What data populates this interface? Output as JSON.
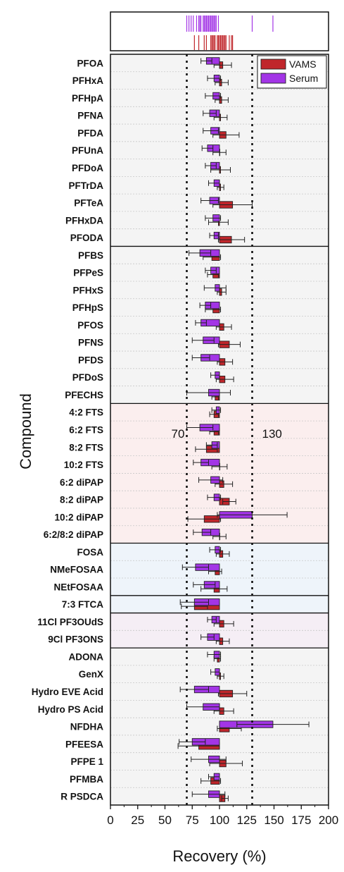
{
  "chart_data": {
    "type": "bar",
    "orientation": "horizontal",
    "ylabel": "Compound",
    "xlabel": "Recovery (%)",
    "xlim": [
      0,
      200
    ],
    "xticks": [
      0,
      25,
      50,
      75,
      100,
      125,
      150,
      175,
      200
    ],
    "reference_lines": [
      {
        "value": 70,
        "label": "70",
        "style": "dotted"
      },
      {
        "value": 130,
        "label": "130",
        "style": "dotted"
      }
    ],
    "baseline": 100,
    "legend": {
      "placement": "top-right",
      "entries": [
        "VAMS",
        "Serum"
      ]
    },
    "colors": {
      "VAMS": "#c0262b",
      "Serum": "#a335e6"
    },
    "groups": [
      {
        "compounds": [
          "PFOA",
          "PFHxA",
          "PFHpA",
          "PFNA",
          "PFDA",
          "PFUnA",
          "PFDoA",
          "PFTrDA",
          "PFTeA",
          "PFHxDA",
          "PFODA"
        ],
        "shade": "#f4f4f4"
      },
      {
        "compounds": [
          "PFBS",
          "PFPeS",
          "PFHxS",
          "PFHpS",
          "PFOS",
          "PFNS",
          "PFDS",
          "PFDoS",
          "PFECHS"
        ],
        "shade": "#f4f4f4"
      },
      {
        "compounds": [
          "4:2 FTS",
          "6:2 FTS",
          "8:2 FTS",
          "10:2 FTS",
          "6:2 diPAP",
          "8:2 diPAP",
          "10:2 diPAP",
          "6:2/8:2 diPAP"
        ],
        "shade": "#fbeeee"
      },
      {
        "compounds": [
          "FOSA",
          "NMeFOSAA",
          "NEtFOSAA"
        ],
        "shade": "#eef4fa"
      },
      {
        "compounds": [
          "7:3 FTCA"
        ],
        "shade": "#eef4fa"
      },
      {
        "compounds": [
          "11Cl PF3OUdS",
          "9Cl PF3ONS"
        ],
        "shade": "#f5eef5"
      },
      {
        "compounds": [
          "ADONA",
          "GenX",
          "Hydro EVE Acid",
          "Hydro PS Acid",
          "NFDHA",
          "PFEESA",
          "PFPE 1",
          "PFMBA",
          "R PSDCA"
        ],
        "shade": "#f4f4f4"
      }
    ],
    "categories": [
      "PFOA",
      "PFHxA",
      "PFHpA",
      "PFNA",
      "PFDA",
      "PFUnA",
      "PFDoA",
      "PFTrDA",
      "PFTeA",
      "PFHxDA",
      "PFODA",
      "PFBS",
      "PFPeS",
      "PFHxS",
      "PFHpS",
      "PFOS",
      "PFNS",
      "PFDS",
      "PFDoS",
      "PFECHS",
      "4:2 FTS",
      "6:2 FTS",
      "8:2 FTS",
      "10:2 FTS",
      "6:2 diPAP",
      "8:2 diPAP",
      "10:2 diPAP",
      "6:2/8:2 diPAP",
      "FOSA",
      "NMeFOSAA",
      "NEtFOSAA",
      "7:3 FTCA",
      "11Cl PF3OUdS",
      "9Cl PF3ONS",
      "ADONA",
      "GenX",
      "Hydro EVE Acid",
      "Hydro PS Acid",
      "NFDHA",
      "PFEESA",
      "PFPE 1",
      "PFMBA",
      "R PSDCA"
    ],
    "series": [
      {
        "name": "VAMS",
        "values": [
          103,
          102,
          102,
          101,
          106,
          100,
          101,
          101,
          112,
          99,
          111,
          93,
          94,
          102,
          94,
          104,
          109,
          105,
          105,
          96,
          95,
          95,
          88,
          100,
          104,
          109,
          86,
          100,
          103,
          96,
          95,
          77,
          104,
          103,
          98,
          101,
          112,
          104,
          109,
          81,
          106,
          92,
          105
        ],
        "errors": [
          8,
          6,
          6,
          6,
          12,
          6,
          9,
          3,
          18,
          9,
          12,
          8,
          5,
          4,
          7,
          7,
          10,
          7,
          8,
          3,
          4,
          4,
          10,
          7,
          8,
          6,
          15,
          6,
          6,
          6,
          12,
          12,
          9,
          6,
          3,
          3,
          13,
          9,
          11,
          19,
          15,
          9,
          3
        ]
      },
      {
        "name": "Serum",
        "values": [
          88,
          95,
          94,
          91,
          92,
          89,
          92,
          95,
          91,
          94,
          95,
          82,
          92,
          96,
          87,
          83,
          85,
          83,
          96,
          90,
          97,
          82,
          93,
          83,
          92,
          95,
          130,
          84,
          96,
          78,
          86,
          77,
          93,
          89,
          95,
          96,
          77,
          85,
          149,
          75,
          90,
          95,
          90
        ],
        "errors": [
          5,
          6,
          7,
          6,
          7,
          5,
          5,
          5,
          8,
          7,
          4,
          10,
          5,
          10,
          5,
          5,
          10,
          8,
          4,
          20,
          4,
          12,
          5,
          7,
          11,
          6,
          32,
          8,
          5,
          12,
          10,
          13,
          4,
          6,
          6,
          4,
          13,
          15,
          33,
          12,
          16,
          5,
          15
        ]
      }
    ],
    "rug": {
      "Serum": [
        70,
        72,
        74,
        76,
        79,
        81,
        82,
        83,
        85,
        86,
        87,
        88,
        89,
        90,
        91,
        92,
        93,
        94,
        95,
        96,
        97,
        99,
        130,
        149
      ],
      "VAMS": [
        77,
        81,
        86,
        88,
        92,
        93,
        94,
        95,
        96,
        98,
        99,
        100,
        101,
        102,
        103,
        104,
        105,
        106,
        109,
        111,
        112
      ]
    }
  }
}
